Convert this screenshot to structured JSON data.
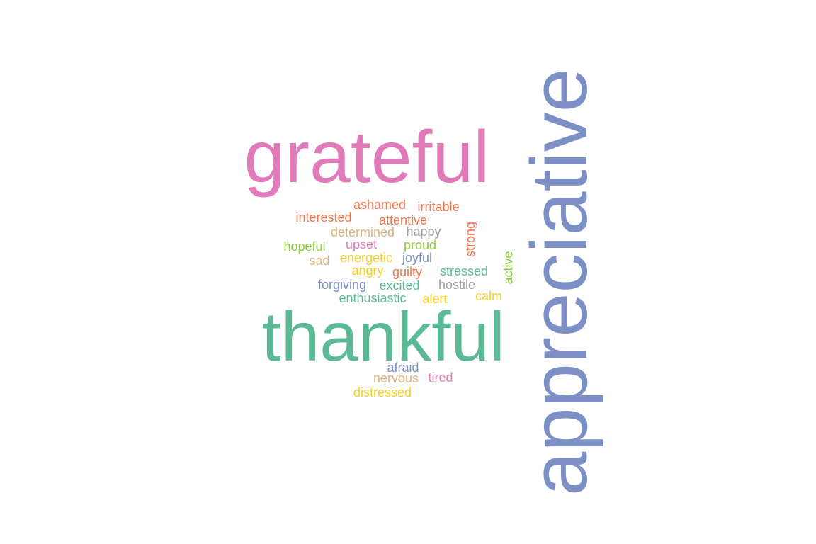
{
  "palette": {
    "pink": "#e07ab9",
    "green": "#5cb995",
    "blue": "#7c90c6",
    "orange": "#f2774d",
    "lime": "#8fcc3f",
    "yellow": "#f5cf28",
    "tan": "#d9b47d",
    "gray": "#a0a0a0"
  },
  "words": [
    {
      "text": "appreciative",
      "color": "blue"
    },
    {
      "text": "grateful",
      "color": "pink"
    },
    {
      "text": "thankful",
      "color": "green"
    },
    {
      "text": "ashamed",
      "color": "orange"
    },
    {
      "text": "irritable",
      "color": "orange"
    },
    {
      "text": "interested",
      "color": "orange"
    },
    {
      "text": "attentive",
      "color": "orange"
    },
    {
      "text": "determined",
      "color": "tan"
    },
    {
      "text": "happy",
      "color": "gray"
    },
    {
      "text": "strong",
      "color": "orange"
    },
    {
      "text": "hopeful",
      "color": "lime"
    },
    {
      "text": "upset",
      "color": "pink"
    },
    {
      "text": "proud",
      "color": "lime"
    },
    {
      "text": "sad",
      "color": "tan"
    },
    {
      "text": "energetic",
      "color": "yellow"
    },
    {
      "text": "joyful",
      "color": "blue"
    },
    {
      "text": "active",
      "color": "lime"
    },
    {
      "text": "angry",
      "color": "yellow"
    },
    {
      "text": "guilty",
      "color": "orange"
    },
    {
      "text": "stressed",
      "color": "green"
    },
    {
      "text": "forgiving",
      "color": "blue"
    },
    {
      "text": "excited",
      "color": "green"
    },
    {
      "text": "hostile",
      "color": "gray"
    },
    {
      "text": "calm",
      "color": "yellow"
    },
    {
      "text": "enthusiastic",
      "color": "green"
    },
    {
      "text": "alert",
      "color": "yellow"
    },
    {
      "text": "afraid",
      "color": "blue"
    },
    {
      "text": "nervous",
      "color": "tan"
    },
    {
      "text": "tired",
      "color": "pink"
    },
    {
      "text": "distressed",
      "color": "yellow"
    }
  ]
}
